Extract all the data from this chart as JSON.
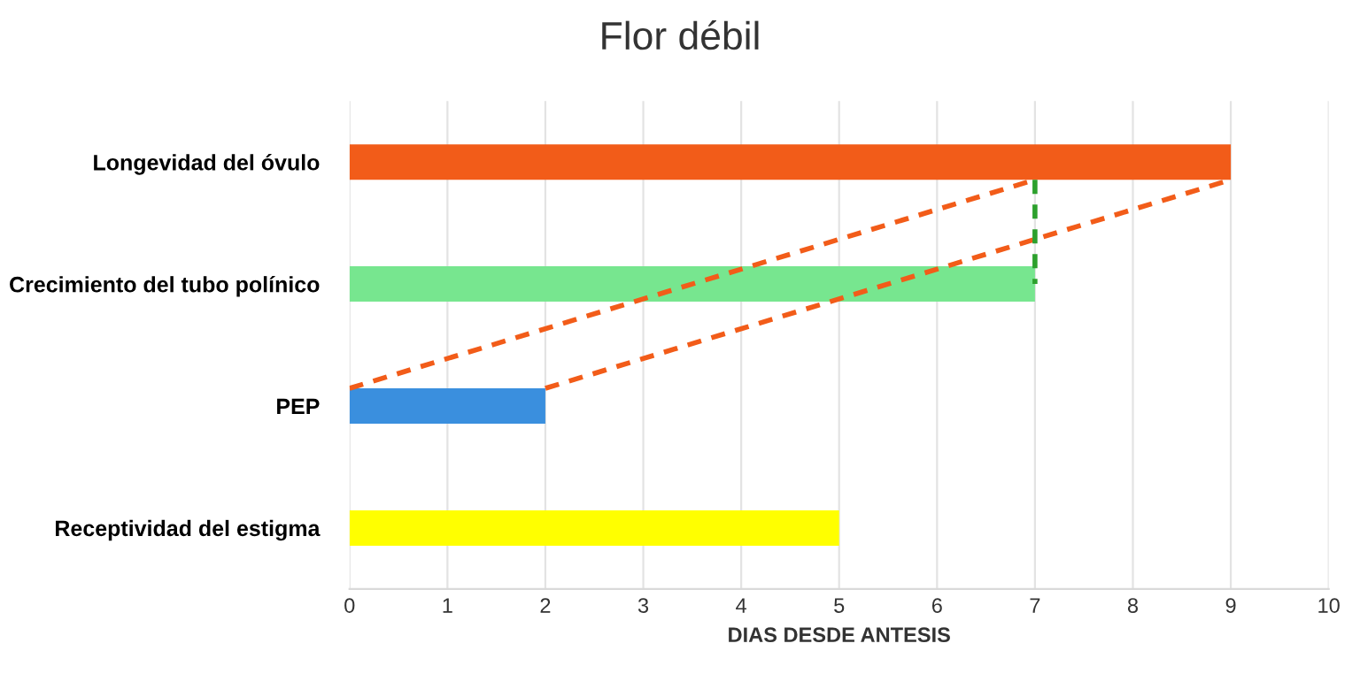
{
  "chart_data": {
    "type": "bar",
    "orientation": "horizontal",
    "title": "Flor débil",
    "xlabel": "DIAS DESDE ANTESIS",
    "categories": [
      "Longevidad del óvulo",
      "Crecimiento del tubo polínico",
      "PEP",
      "Receptividad del estigma"
    ],
    "values": [
      9,
      7,
      2,
      5
    ],
    "colors": [
      "#f25c19",
      "#77e68f",
      "#3a8fde",
      "#ffff00"
    ],
    "xlim": [
      0,
      10
    ],
    "xticks": [
      0,
      1,
      2,
      3,
      4,
      5,
      6,
      7,
      8,
      9,
      10
    ],
    "grid": "x",
    "legend": false
  }
}
